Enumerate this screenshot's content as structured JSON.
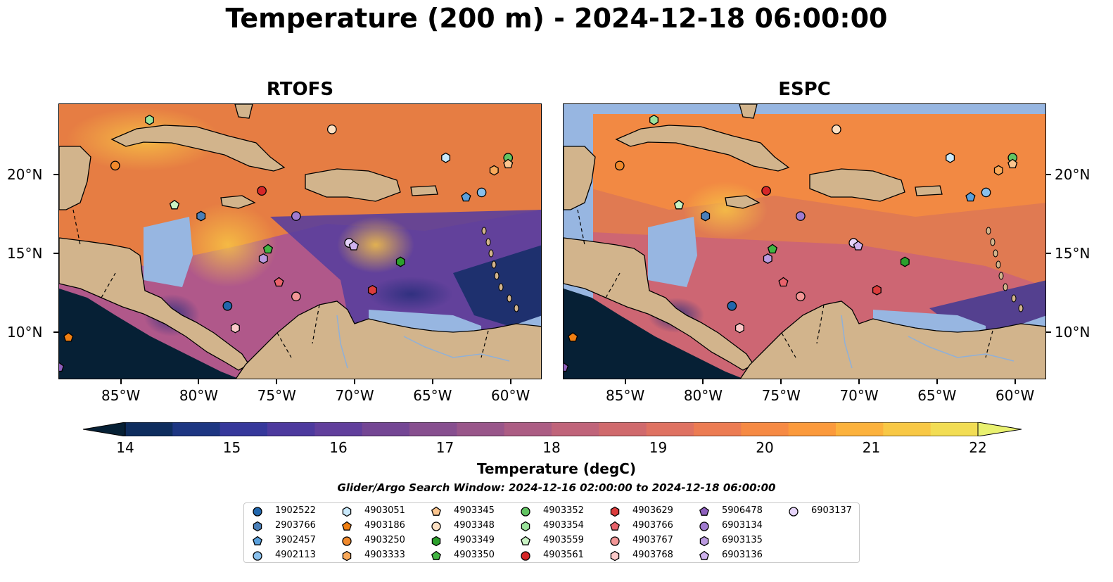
{
  "title": "Temperature (200 m) - 2024-12-18 06:00:00",
  "panels": [
    {
      "id": "rtofs",
      "title": "RTOFS"
    },
    {
      "id": "espc",
      "title": "ESPC"
    }
  ],
  "lon_ticks": [
    "85°W",
    "80°W",
    "75°W",
    "70°W",
    "65°W",
    "60°W"
  ],
  "lat_ticks": [
    "20°N",
    "15°N",
    "10°N"
  ],
  "colorbar": {
    "labels": [
      "14",
      "15",
      "16",
      "17",
      "18",
      "19",
      "20",
      "21",
      "22"
    ],
    "title": "Temperature (degC)",
    "colors": [
      "#062035",
      "#0e2d5e",
      "#1d3682",
      "#36389b",
      "#4d3a9e",
      "#613f9c",
      "#744694",
      "#874f8f",
      "#99568a",
      "#ac5d84",
      "#c0647a",
      "#d06a6d",
      "#df7262",
      "#ec7c53",
      "#f68a44",
      "#fb9a3c",
      "#fcb23d",
      "#f8c845",
      "#f2dd54",
      "#e9f170"
    ]
  },
  "search_window": "Glider/Argo Search Window: 2024-12-16 02:00:00 to 2024-12-18 06:00:00",
  "legend": [
    {
      "id": "1902522",
      "marker": "circle",
      "color": "#2166ac"
    },
    {
      "id": "2903766",
      "marker": "hexagon",
      "color": "#4a7fb8"
    },
    {
      "id": "3902457",
      "marker": "pentagon",
      "color": "#5aa0dc"
    },
    {
      "id": "4902113",
      "marker": "circle",
      "color": "#89c0ec"
    },
    {
      "id": "4903051",
      "marker": "hexagon",
      "color": "#c9e9fb"
    },
    {
      "id": "4903186",
      "marker": "pentagon",
      "color": "#f07f12"
    },
    {
      "id": "4903250",
      "marker": "circle",
      "color": "#f0892c"
    },
    {
      "id": "4903333",
      "marker": "hexagon",
      "color": "#f9a95a"
    },
    {
      "id": "4903345",
      "marker": "pentagon",
      "color": "#fbc58e"
    },
    {
      "id": "4903348",
      "marker": "circle",
      "color": "#fde0c3"
    },
    {
      "id": "4903349",
      "marker": "hexagon",
      "color": "#2ca02c"
    },
    {
      "id": "4903350",
      "marker": "pentagon",
      "color": "#43b543"
    },
    {
      "id": "4903352",
      "marker": "circle",
      "color": "#62c462"
    },
    {
      "id": "4903354",
      "marker": "hexagon",
      "color": "#9be39b"
    },
    {
      "id": "4903559",
      "marker": "pentagon",
      "color": "#c9f3c4"
    },
    {
      "id": "4903561",
      "marker": "circle",
      "color": "#d62728"
    },
    {
      "id": "4903629",
      "marker": "hexagon",
      "color": "#dc3c3c"
    },
    {
      "id": "4903766",
      "marker": "pentagon",
      "color": "#e8626b"
    },
    {
      "id": "4903767",
      "marker": "circle",
      "color": "#f29696"
    },
    {
      "id": "4903768",
      "marker": "hexagon",
      "color": "#fbc9c9"
    },
    {
      "id": "5906478",
      "marker": "pentagon",
      "color": "#8e5fbd"
    },
    {
      "id": "6903134",
      "marker": "circle",
      "color": "#a07bcf"
    },
    {
      "id": "6903135",
      "marker": "hexagon",
      "color": "#bb9ae0"
    },
    {
      "id": "6903136",
      "marker": "pentagon",
      "color": "#cfb2ee"
    },
    {
      "id": "6903137",
      "marker": "circle",
      "color": "#e6d4fa"
    }
  ],
  "markers": [
    {
      "id": "4903250",
      "lon": -85.4,
      "lat": 20.6
    },
    {
      "id": "4903354",
      "lon": -83.2,
      "lat": 23.5
    },
    {
      "id": "4903348",
      "lon": -71.5,
      "lat": 22.9
    },
    {
      "id": "4903051",
      "lon": -64.2,
      "lat": 21.1
    },
    {
      "id": "4903352",
      "lon": -60.2,
      "lat": 21.1
    },
    {
      "id": "4903345",
      "lon": -60.2,
      "lat": 20.7
    },
    {
      "id": "4903333",
      "lon": -61.1,
      "lat": 20.3
    },
    {
      "id": "4903561",
      "lon": -76.0,
      "lat": 19.0
    },
    {
      "id": "4903559",
      "lon": -81.6,
      "lat": 18.1
    },
    {
      "id": "2903766",
      "lon": -79.9,
      "lat": 17.4
    },
    {
      "id": "6903134",
      "lon": -73.8,
      "lat": 17.4
    },
    {
      "id": "3902457",
      "lon": -62.9,
      "lat": 18.6
    },
    {
      "id": "4902113",
      "lon": -61.9,
      "lat": 18.9
    },
    {
      "id": "4903350",
      "lon": -75.6,
      "lat": 15.3
    },
    {
      "id": "6903135",
      "lon": -75.9,
      "lat": 14.7
    },
    {
      "id": "6903137",
      "lon": -70.4,
      "lat": 15.7
    },
    {
      "id": "6903136",
      "lon": -70.1,
      "lat": 15.5
    },
    {
      "id": "4903349",
      "lon": -67.1,
      "lat": 14.5
    },
    {
      "id": "4903766",
      "lon": -74.9,
      "lat": 13.2
    },
    {
      "id": "4903767",
      "lon": -73.8,
      "lat": 12.3
    },
    {
      "id": "4903629",
      "lon": -68.9,
      "lat": 12.7
    },
    {
      "id": "1902522",
      "lon": -78.2,
      "lat": 11.7
    },
    {
      "id": "4903768",
      "lon": -77.7,
      "lat": 10.3
    },
    {
      "id": "4903186",
      "lon": -88.4,
      "lat": 9.7
    },
    {
      "id": "5906478",
      "lon": -89.0,
      "lat": 7.8
    }
  ],
  "map_extent": {
    "lon": [
      -89.0,
      -58.0
    ],
    "lat": [
      7.0,
      24.5
    ]
  },
  "map_colors": {
    "land": "#d2b48c",
    "shallow": "#97b6e1",
    "deep": "#062035",
    "coast": "#000000",
    "river": "#8fb0d8"
  }
}
